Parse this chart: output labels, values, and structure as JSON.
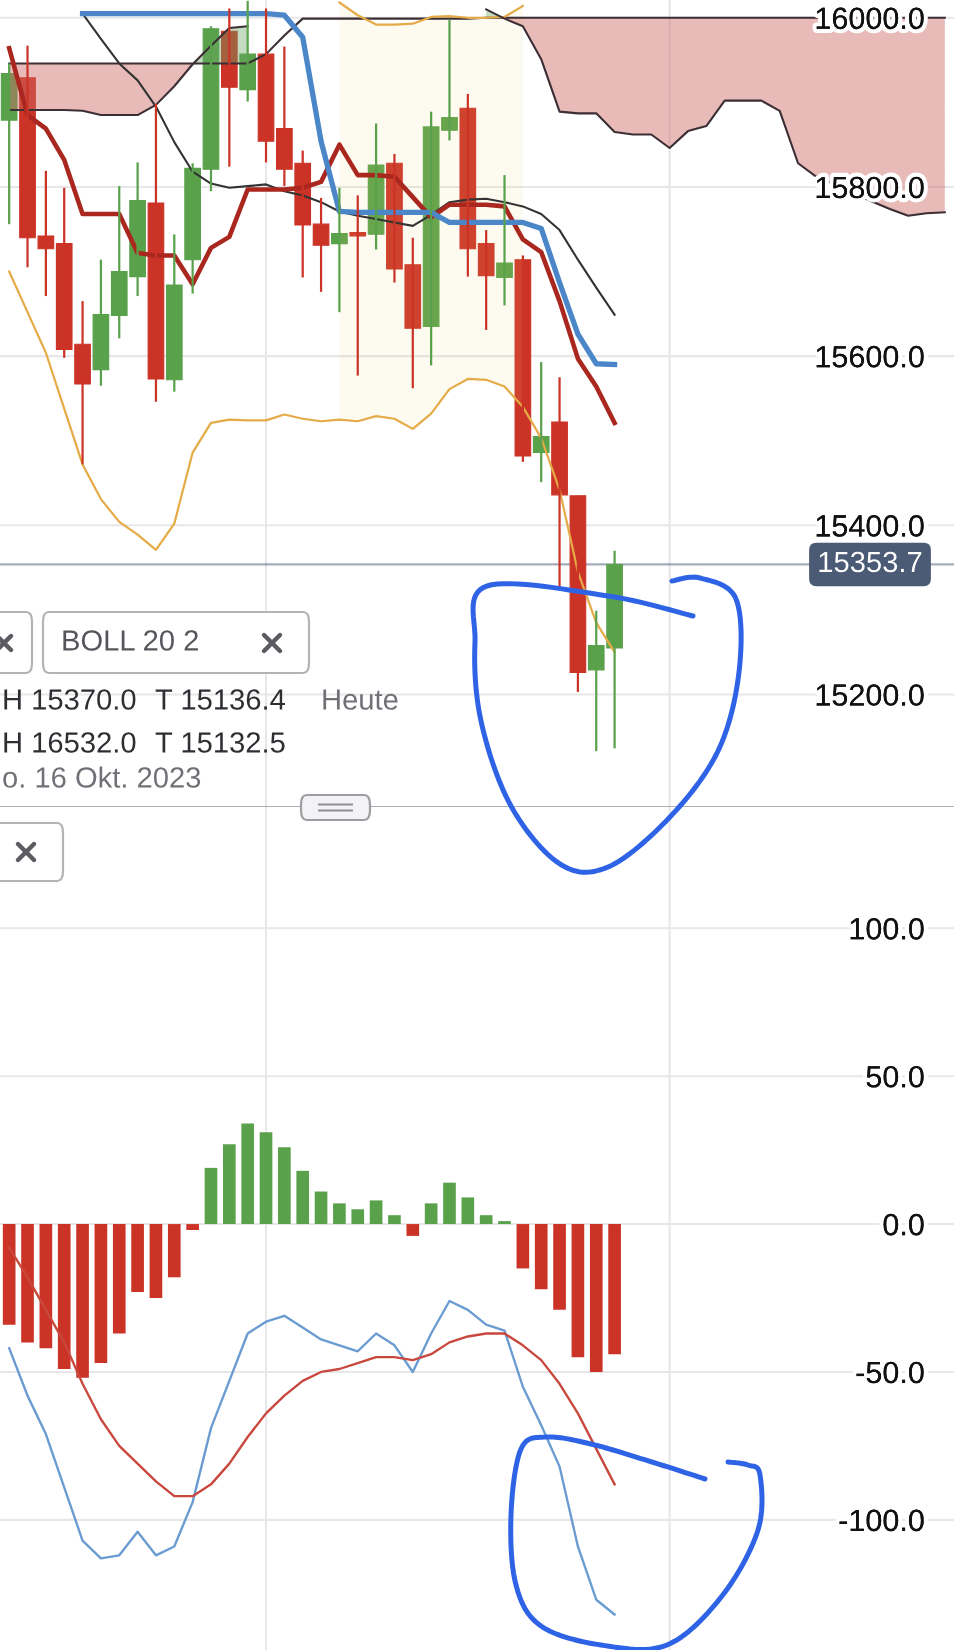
{
  "chart_data": [
    {
      "type": "candlestick",
      "categories": [
        null,
        null,
        null,
        null,
        null,
        null,
        null,
        null,
        null,
        null,
        null,
        null,
        null,
        null,
        null,
        null,
        null,
        null,
        null,
        null,
        null,
        null,
        null,
        null,
        null,
        null,
        null,
        null,
        null,
        null,
        null,
        null,
        null,
        null,
        null,
        null,
        null,
        null,
        null,
        null,
        null,
        null,
        null,
        null,
        null,
        null,
        null,
        null,
        null,
        null,
        null,
        null
      ],
      "ohlc": [
        [
          15879,
          15946,
          15756,
          15934
        ],
        [
          15929,
          15967,
          15705,
          15740
        ],
        [
          15742,
          15819,
          15671,
          15727
        ],
        [
          15733,
          15799,
          15598,
          15608
        ],
        [
          15614,
          15665,
          15472,
          15567
        ],
        [
          15584,
          15714,
          15565,
          15649
        ],
        [
          15648,
          15801,
          15621,
          15700
        ],
        [
          15694,
          15829,
          15671,
          15784
        ],
        [
          15781,
          15898,
          15546,
          15573
        ],
        [
          15572,
          15744,
          15558,
          15684
        ],
        [
          15714,
          15828,
          15674,
          15822
        ],
        [
          15821,
          15990,
          15795,
          15987
        ],
        [
          15984,
          16011,
          15824,
          15918
        ],
        [
          15915,
          16020,
          15901,
          15957
        ],
        [
          15957,
          16011,
          15829,
          15854
        ],
        [
          15869,
          15966,
          15801,
          15821
        ],
        [
          15828,
          15843,
          15693,
          15755
        ],
        [
          15756,
          15787,
          15676,
          15731
        ],
        [
          15733,
          15799,
          15652,
          15745
        ],
        [
          15746,
          15790,
          15577,
          15742
        ],
        [
          15744,
          15875,
          15726,
          15826
        ],
        [
          15828,
          15839,
          15687,
          15703
        ],
        [
          15708,
          15740,
          15562,
          15633
        ],
        [
          15635,
          15889,
          15589,
          15871
        ],
        [
          15867,
          15998,
          15855,
          15882
        ],
        [
          15893,
          15910,
          15694,
          15727
        ],
        [
          15733,
          15749,
          15631,
          15695
        ],
        [
          15693,
          15814,
          15660,
          15710
        ],
        [
          15714,
          15719,
          15475,
          15482
        ],
        [
          15486,
          15593,
          15451,
          15505
        ],
        [
          15522,
          15575,
          15325,
          15436
        ],
        [
          15435,
          15435,
          15203,
          15226
        ],
        [
          15229,
          15299,
          15133,
          15258
        ],
        [
          15255,
          15370.0,
          15136.4,
          15353.7
        ],
        null,
        null,
        null,
        null,
        null,
        null,
        null,
        null,
        null,
        null,
        null,
        null,
        null,
        null,
        null,
        null,
        null,
        null
      ],
      "colors": [
        "#5aa14b",
        "#cc3327",
        "#cc3327",
        "#cc3327",
        "#cc3327",
        "#5aa14b",
        "#5aa14b",
        "#5aa14b",
        "#cc3327",
        "#5aa14b",
        "#5aa14b",
        "#5aa14b",
        "#cc3327",
        "#5aa14b",
        "#cc3327",
        "#cc3327",
        "#cc3327",
        "#cc3327",
        "#5aa14b",
        "#cc3327",
        "#5aa14b",
        "#cc3327",
        "#cc3327",
        "#5aa14b",
        "#5aa14b",
        "#cc3327",
        "#cc3327",
        "#5aa14b",
        "#cc3327",
        "#5aa14b",
        "#cc3327",
        "#cc3327",
        "#5aa14b",
        "#5aa14b",
        null,
        null,
        null,
        null,
        null,
        null,
        null,
        null,
        null,
        null,
        null,
        null,
        null,
        null,
        null,
        null,
        null,
        null
      ],
      "series": [
        {
          "type": "line",
          "color": "#333333",
          "values": [
            null,
            null,
            null,
            null,
            16005,
            15975,
            15946,
            15926,
            15895,
            15853,
            15818,
            15804,
            15799,
            15801,
            15803,
            15795,
            15790,
            15782,
            15771,
            15766,
            15762,
            15758,
            15754,
            15767,
            15782,
            15785,
            15786,
            15782,
            15777,
            15768,
            15749,
            15714,
            15681,
            15649,
            null,
            null,
            null,
            null,
            null,
            null,
            null,
            null,
            null,
            null,
            null,
            null,
            null,
            null,
            null,
            null,
            null,
            null
          ],
          "lower": [
            null,
            null,
            null,
            null,
            null,
            null,
            null,
            null,
            null,
            null,
            null,
            null,
            null,
            null,
            null,
            null,
            null,
            null,
            15525,
            15523,
            15529,
            15526,
            15514,
            15532,
            15561,
            15573,
            15572,
            15564,
            15540,
            null,
            null,
            null,
            null,
            null,
            null,
            null,
            null,
            null,
            null,
            null,
            null,
            null,
            null,
            null,
            null,
            null,
            null,
            null,
            null,
            null,
            null,
            null
          ],
          "upper": [
            null,
            null,
            null,
            null,
            null,
            null,
            null,
            null,
            null,
            null,
            null,
            null,
            null,
            null,
            null,
            null,
            null,
            null,
            16018,
            16003,
            15992,
            15992,
            15993,
            16001,
            16002,
            16000,
            16000,
            16001,
            16014,
            null,
            null,
            null,
            null,
            null,
            null,
            null,
            null,
            null,
            null,
            null,
            null,
            null,
            null,
            null,
            null,
            null,
            null,
            null,
            null,
            null,
            null,
            null
          ],
          "colors": [
            null,
            null,
            null,
            null,
            null,
            null,
            null,
            null,
            null,
            null,
            null,
            null,
            null,
            null,
            null,
            null,
            null,
            null,
            "#fdfaf0",
            "#fdfaf0",
            "#fdfaf0",
            "#fdfaf0",
            "#fdfaf0",
            "#fdfaf0",
            "#fdfaf0",
            "#fdfaf0",
            "#fdfaf0",
            "#fdfaf0",
            "#fdfaf0",
            null,
            null,
            null,
            null,
            null,
            null,
            null,
            null,
            null,
            null,
            null,
            null,
            null,
            null,
            null,
            null,
            null,
            null,
            null,
            null,
            null,
            null,
            null
          ]
        },
        {
          "type": "line",
          "color": "#3b2e34",
          "values": [
            15946,
            15946,
            15946,
            15946,
            15946,
            15946,
            15946,
            15946,
            15946,
            15946,
            15946,
            15946,
            15946,
            15946,
            15957,
            15979,
            15999,
            15999,
            15999,
            15999,
            15999,
            15999,
            15999,
            15999,
            15999,
            15999,
            16000,
            16000,
            16000,
            16000,
            16000,
            16000,
            16000,
            16000,
            16000,
            16000,
            16000,
            16000,
            16000,
            16000,
            16000,
            16000,
            16000,
            16000,
            16000,
            16000,
            16000,
            16000,
            16000,
            16000,
            16000,
            16000
          ],
          "lower": [
            15891,
            15891,
            15891,
            15891,
            15890,
            15885,
            15885,
            15885,
            15897,
            15919,
            15945,
            null,
            null,
            null,
            null,
            null,
            null,
            null,
            null,
            null,
            null,
            null,
            null,
            null,
            null,
            null,
            null,
            15999,
            15990,
            15951,
            15889,
            15887,
            15887,
            15865,
            15862,
            15862,
            15846,
            15866,
            15872,
            15902,
            15902,
            15902,
            15890,
            15828,
            15812,
            15803,
            15793,
            15783,
            15774,
            15766,
            15769,
            15770
          ],
          "upper": [
            15946,
            15946,
            15946,
            15946,
            15946,
            15946,
            15946,
            15946,
            15946,
            15946,
            15946,
            null,
            null,
            null,
            null,
            null,
            null,
            null,
            null,
            null,
            null,
            null,
            null,
            null,
            null,
            null,
            null,
            16000,
            16000,
            16000,
            16000,
            16000,
            16000,
            16000,
            16000,
            16000,
            16000,
            16000,
            16000,
            16000,
            16000,
            16000,
            16000,
            16000,
            16000,
            16000,
            16000,
            16000,
            16000,
            16000,
            16000,
            16000
          ],
          "colors": [
            "#e8bab8",
            "#e8bab8",
            "#e8bab8",
            "#e8bab8",
            "#e8bab8",
            "#e8bab8",
            "#e8bab8",
            "#e8bab8",
            "#e8bab8",
            "#e8bab8",
            "#e8bab8",
            null,
            null,
            null,
            null,
            null,
            null,
            null,
            null,
            null,
            null,
            null,
            null,
            null,
            null,
            null,
            null,
            "#e8bab8",
            "#e8bab8",
            "#e8bab8",
            "#e8bab8",
            "#e8bab8",
            "#e8bab8",
            "#e8bab8",
            "#e8bab8",
            "#e8bab8",
            "#e8bab8",
            "#e8bab8",
            "#e8bab8",
            "#e8bab8",
            "#e8bab8",
            "#e8bab8",
            "#e8bab8",
            "#e8bab8",
            "#e8bab8",
            "#e8bab8",
            "#e8bab8",
            "#e8bab8",
            "#e8bab8",
            "#e8bab8",
            "#e8bab8",
            "#e8bab8"
          ]
        },
        {
          "type": "line",
          "color": "#e4ab47",
          "values": [
            null,
            null,
            null,
            null,
            null,
            null,
            null,
            null,
            null,
            null,
            null,
            null,
            null,
            null,
            null,
            null,
            null,
            null,
            16018,
            16003,
            15992,
            15992,
            15993,
            16001,
            16002,
            16000,
            16000,
            16001,
            16014,
            null,
            null,
            null,
            null,
            null,
            null,
            null,
            null,
            null,
            null,
            null,
            null,
            null,
            null,
            null,
            null,
            null,
            null,
            null,
            null,
            null,
            null,
            null
          ]
        },
        {
          "type": "line",
          "color": "#e4ab47",
          "values": [
            15700,
            15652,
            15604,
            15538,
            15472,
            15431,
            15404,
            15389,
            15371,
            15402,
            15486,
            15521,
            15525,
            15524,
            15524,
            15531,
            15526,
            15523,
            15525,
            15523,
            15529,
            15526,
            15514,
            15532,
            15561,
            15573,
            15572,
            15564,
            15540,
            15503,
            15442,
            15345,
            15285,
            15250,
            null,
            null,
            null,
            null,
            null,
            null,
            null,
            null,
            null,
            null,
            null,
            null,
            null,
            null,
            null,
            null,
            null,
            null
          ]
        },
        {
          "type": "line",
          "color": "#3b2e34",
          "values": [
            15891,
            15891,
            15891,
            15891,
            15890,
            15885,
            15885,
            15885,
            15897,
            15919,
            15945,
            15967,
            15988,
            15990,
            null,
            null,
            null,
            null,
            null,
            null,
            null,
            null,
            null,
            null,
            null,
            null,
            16010,
            15999,
            15990,
            15951,
            15889,
            15887,
            15887,
            15865,
            15862,
            15862,
            15846,
            15866,
            15872,
            15902,
            15902,
            15902,
            15890,
            15828,
            15812,
            15803,
            15793,
            15783,
            15774,
            15766,
            15769,
            15770
          ],
          "lower": [
            null,
            null,
            null,
            null,
            null,
            null,
            null,
            null,
            null,
            null,
            15945,
            15946,
            15946,
            15946,
            null,
            null,
            null,
            null,
            null,
            null,
            null,
            null,
            null,
            null,
            null,
            null,
            16000,
            15999,
            null,
            null,
            null,
            null,
            null,
            null,
            null,
            null,
            null,
            null,
            null,
            null,
            null,
            null,
            null,
            null,
            null,
            null,
            null,
            null,
            null,
            null,
            null,
            null
          ],
          "upper": [
            null,
            null,
            null,
            null,
            null,
            null,
            null,
            null,
            null,
            null,
            15946,
            15967,
            15988,
            15990,
            null,
            null,
            null,
            null,
            null,
            null,
            null,
            null,
            null,
            null,
            null,
            null,
            16010,
            16000,
            null,
            null,
            null,
            null,
            null,
            null,
            null,
            null,
            null,
            null,
            null,
            null,
            null,
            null,
            null,
            null,
            null,
            null,
            null,
            null,
            null,
            null,
            null,
            null
          ],
          "colors": [
            null,
            null,
            null,
            null,
            null,
            null,
            null,
            null,
            null,
            null,
            "#c3dbc1",
            "#c3dbc1",
            "#c3dbc1",
            "#c3dbc1",
            null,
            null,
            null,
            null,
            null,
            null,
            null,
            null,
            null,
            null,
            null,
            null,
            "#c3dbc1",
            "#c3dbc1",
            null,
            null,
            null,
            null,
            null,
            null,
            null,
            null,
            null,
            null,
            null,
            null,
            null,
            null,
            null,
            null,
            null,
            null,
            null,
            null,
            null,
            null,
            null,
            null
          ]
        },
        {
          "type": "line",
          "color": "#a9271e",
          "values": [
            15964,
            15885,
            15869,
            15832,
            15768,
            15768,
            15768,
            15722,
            15719,
            15719,
            15685,
            15728,
            15741,
            15797,
            15797,
            15797,
            15799,
            15806,
            15850,
            15814,
            15814,
            15812,
            15788,
            15764,
            15779,
            15779,
            15779,
            15777,
            15738,
            15723,
            15665,
            15597,
            15564,
            15521,
            null,
            null,
            null,
            null,
            null,
            null,
            null,
            null,
            null,
            null,
            null,
            null,
            null,
            null,
            null,
            null,
            null,
            null
          ]
        },
        {
          "type": "line",
          "color": "#4a86c8",
          "values": [
            null,
            null,
            null,
            null,
            16005,
            16005,
            16005,
            16005,
            16005,
            16005,
            16005,
            16005,
            16005,
            16005,
            16005,
            16003,
            15977,
            15854,
            15771,
            15770,
            15770,
            15770,
            15770,
            15770,
            15758,
            15758,
            15758,
            15758,
            15758,
            15751,
            15687,
            15626,
            15591,
            15590,
            null,
            null,
            null,
            null,
            null,
            null,
            null,
            null,
            null,
            null,
            null,
            null,
            null,
            null,
            null,
            null,
            null,
            null
          ]
        }
      ],
      "ylim": [
        15067,
        16021
      ],
      "yticks": [
        {
          "value": 15200,
          "label": "15200.0"
        },
        {
          "value": 15400,
          "label": "15400.0"
        },
        {
          "value": 15600,
          "label": "15600.0"
        },
        {
          "value": 15800,
          "label": "15800.0"
        },
        {
          "value": 16000,
          "label": "16000.0"
        }
      ],
      "tick_labels": "y",
      "grid": "y",
      "ref_lines": [
        {
          "axis": "y",
          "value": 15353.7,
          "label": "15353.7",
          "color": "#4b5a75"
        }
      ],
      "annotations": [
        "BOLL 20 2",
        "H 15370.0",
        "T 15136.4",
        "Heute",
        "H 16532.0",
        "T 15132.5",
        "o. 16 Okt. 2023"
      ]
    },
    {
      "type": "bar",
      "categories": [
        null,
        null,
        null,
        null,
        null,
        null,
        null,
        null,
        null,
        null,
        null,
        null,
        null,
        null,
        null,
        null,
        null,
        null,
        null,
        null,
        null,
        null,
        null,
        null,
        null,
        null,
        null,
        null,
        null,
        null,
        null,
        null,
        null,
        null,
        null,
        null,
        null,
        null,
        null,
        null,
        null,
        null,
        null,
        null,
        null,
        null,
        null,
        null,
        null,
        null,
        null,
        null
      ],
      "series": [
        {
          "type": "bar",
          "values": [
            -34,
            -40,
            -42,
            -49,
            -52,
            -47,
            -37,
            -23,
            -25,
            -18,
            -2,
            19,
            27,
            34,
            31,
            26,
            18,
            11,
            7,
            5,
            8,
            3,
            -4,
            7,
            14,
            9,
            3,
            1,
            -15,
            -22,
            -29,
            -45,
            -50,
            -44,
            null,
            null,
            null,
            null,
            null,
            null,
            null,
            null,
            null,
            null,
            null,
            null,
            null,
            null,
            null,
            null,
            null,
            null
          ],
          "colors": [
            "#cc3327",
            "#cc3327",
            "#cc3327",
            "#cc3327",
            "#cc3327",
            "#cc3327",
            "#cc3327",
            "#cc3327",
            "#cc3327",
            "#cc3327",
            "#cc3327",
            "#5aa14b",
            "#5aa14b",
            "#5aa14b",
            "#5aa14b",
            "#5aa14b",
            "#5aa14b",
            "#5aa14b",
            "#5aa14b",
            "#5aa14b",
            "#5aa14b",
            "#5aa14b",
            "#cc3327",
            "#5aa14b",
            "#5aa14b",
            "#5aa14b",
            "#5aa14b",
            "#5aa14b",
            "#cc3327",
            "#cc3327",
            "#cc3327",
            "#cc3327",
            "#cc3327",
            "#cc3327",
            null,
            null,
            null,
            null,
            null,
            null,
            null,
            null,
            null,
            null,
            null,
            null,
            null,
            null,
            null,
            null,
            null,
            null
          ]
        },
        {
          "type": "line",
          "color": "#6a9bd1",
          "values": [
            -42,
            -58,
            -71,
            -89,
            -107,
            -113,
            -112,
            -104,
            -112,
            -109,
            -94,
            -69,
            -53,
            -37,
            -33,
            -31,
            -35,
            -39,
            -41,
            -43,
            -37,
            -41,
            -50,
            -37,
            -26,
            -29,
            -34,
            -36,
            -55,
            -68,
            -82,
            -109,
            -127,
            -132,
            null,
            null,
            null,
            null,
            null,
            null,
            null,
            null,
            null,
            null,
            null,
            null,
            null,
            null,
            null,
            null,
            null,
            null
          ]
        },
        {
          "type": "line",
          "color": "#c9483e",
          "values": [
            -8,
            -18,
            -29,
            -40,
            -54,
            -66,
            -75,
            -81,
            -87,
            -92,
            -92,
            -88,
            -81,
            -72,
            -64,
            -58,
            -53,
            -50,
            -49,
            -47,
            -45,
            -45,
            -46,
            -44,
            -40,
            -38,
            -37,
            -37,
            -41,
            -46,
            -54,
            -64,
            -76,
            -88,
            null,
            null,
            null,
            null,
            null,
            null,
            null,
            null,
            null,
            null,
            null,
            null,
            null,
            null,
            null,
            null,
            null,
            null
          ]
        }
      ],
      "ylim": [
        -144,
        141
      ],
      "yticks": [
        {
          "value": 100,
          "label": "100.0"
        },
        {
          "value": 50,
          "label": "50.0"
        },
        {
          "value": 0,
          "label": "0.0"
        },
        {
          "value": -50,
          "label": "-50.0"
        },
        {
          "value": -100,
          "label": "-100.0"
        }
      ],
      "tick_labels": "y",
      "grid": "y"
    }
  ]
}
